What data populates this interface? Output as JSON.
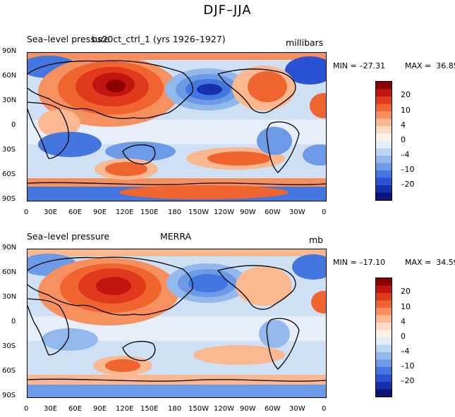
{
  "figure_title": "DJF–JJA",
  "panels": [
    {
      "left_title": "Sea–level pressure",
      "center_title": "bs20ct_ctrl_1 (yrs 1926–1927)",
      "units": "millibars",
      "min_label": "MIN = –27.31",
      "max_label": "MAX =  36.85"
    },
    {
      "left_title": "Sea–level pressure",
      "center_title": "MERRA",
      "units": "mb",
      "min_label": "MIN = –17.10",
      "max_label": "MAX =  34.59"
    }
  ],
  "lat_ticks": [
    "90N",
    "60N",
    "30N",
    "0",
    "30S",
    "60S",
    "90S"
  ],
  "lon_ticks": [
    "0",
    "30E",
    "60E",
    "90E",
    "120E",
    "150E",
    "180",
    "150W",
    "120W",
    "90W",
    "60W",
    "30W",
    "0"
  ],
  "colorbar": {
    "labels": [
      "20",
      "10",
      "4",
      "0",
      "–4",
      "–10",
      "–20"
    ],
    "colors": [
      "#8b0000",
      "#c2150f",
      "#e0391c",
      "#f0642f",
      "#f6905f",
      "#f9b890",
      "#fbdcc2",
      "#fdf1e4",
      "#e4eefa",
      "#bcd6f2",
      "#93b9ec",
      "#6c9ae6",
      "#4476e0",
      "#2a52d4",
      "#1730ae",
      "#0b1576"
    ]
  }
}
